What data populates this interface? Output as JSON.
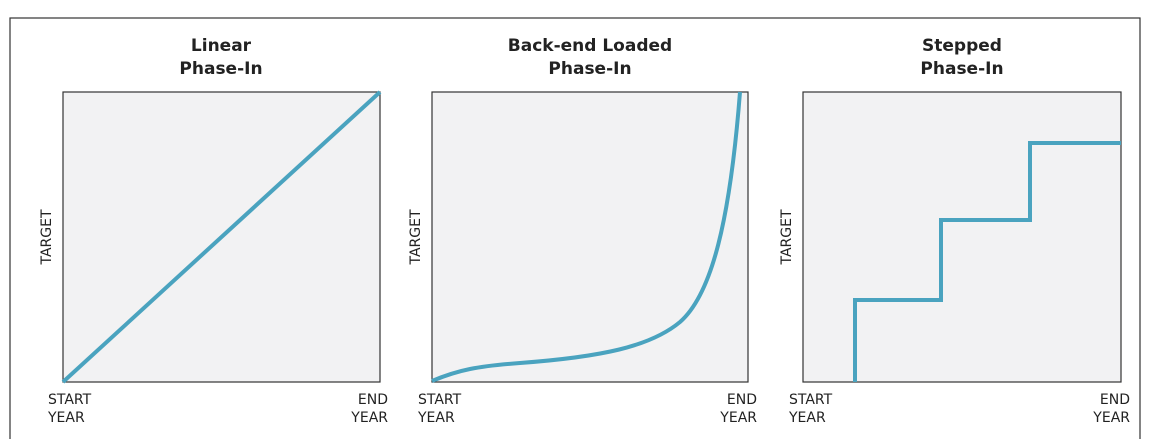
{
  "panels": [
    {
      "title": [
        "Linear",
        "Phase-In"
      ],
      "y_label": "TARGET",
      "x_start": [
        "START",
        "YEAR"
      ],
      "x_end": [
        "END",
        "YEAR"
      ]
    },
    {
      "title": [
        "Back-end Loaded",
        "Phase-In"
      ],
      "y_label": "TARGET",
      "x_start": [
        "START",
        "YEAR"
      ],
      "x_end": [
        "END",
        "YEAR"
      ]
    },
    {
      "title": [
        "Stepped",
        "Phase-In"
      ],
      "y_label": "TARGET",
      "x_start": [
        "START",
        "YEAR"
      ],
      "x_end": [
        "END",
        "YEAR"
      ]
    }
  ]
}
